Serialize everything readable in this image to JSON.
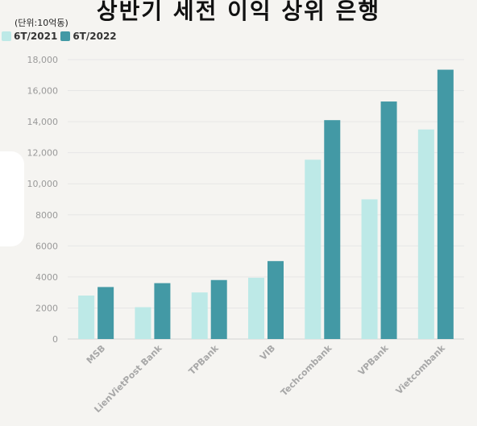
{
  "chart_data": {
    "type": "bar",
    "title": "상반기 세전 이익 상위 은행",
    "unit_label": "(단위:10억동)",
    "categories": [
      "MSB",
      "LienVietPost Bank",
      "TPBank",
      "VIB",
      "Techcombank",
      "VPBank",
      "Vietcombank"
    ],
    "series": [
      {
        "name": "6T/2021",
        "color": "#bde9e7",
        "values": [
          2800,
          2050,
          3000,
          3950,
          11550,
          9000,
          13500
        ]
      },
      {
        "name": "6T/2022",
        "color": "#4399a5",
        "values": [
          3350,
          3600,
          3800,
          5020,
          14100,
          15300,
          17350
        ]
      }
    ],
    "ylim": [
      0,
      18000
    ],
    "yticks": [
      0,
      2000,
      4000,
      6000,
      8000,
      10000,
      12000,
      14000,
      16000,
      18000
    ],
    "ytick_labels": [
      "0",
      "2000",
      "4000",
      "6000",
      "8000",
      "10,000",
      "12,000",
      "14,000",
      "16,000",
      "18,000"
    ],
    "grid": true,
    "legend_position": "top-left"
  }
}
